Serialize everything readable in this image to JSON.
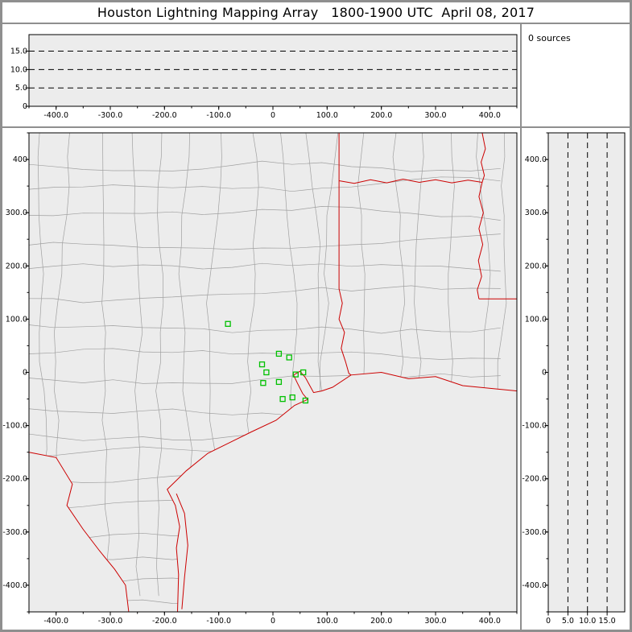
{
  "title": "Houston Lightning Mapping Array   1800-1900 UTC  April 08, 2017",
  "sources_label": "0 sources",
  "colors": {
    "frame_gray": "#8f8f8f",
    "plot_bg": "#ececec",
    "county_line": "#a0a0a0",
    "boundary_red": "#cc0000",
    "station_green": "#00c000",
    "axis_black": "#000000"
  },
  "chart_data": {
    "panels": [
      {
        "id": "altitude-vs-east-west",
        "type": "scatter",
        "title": "altitude (km) vs east-west distance (km)",
        "x_range": [
          -450,
          450
        ],
        "y_range": [
          0,
          19.5
        ],
        "x_ticks": {
          "values": [
            -400,
            -300,
            -200,
            -100,
            0,
            100,
            200,
            300,
            400
          ],
          "labels": [
            "-400.0",
            "-300.0",
            "-200.0",
            "-100.0",
            "0",
            "100.0",
            "200.0",
            "300.0",
            "400.0"
          ]
        },
        "y_ticks": {
          "values": [
            15,
            10,
            5,
            0
          ],
          "labels": [
            "15.0",
            "10.0",
            "5.0",
            "0"
          ]
        },
        "dashed_gridlines": [
          5,
          10,
          15
        ],
        "sources": 0,
        "points": []
      },
      {
        "id": "plan-view-map",
        "type": "scatter",
        "title": "plan view: lightning sources over Texas / Louisiana map",
        "x_range": [
          -450,
          450
        ],
        "y_range": [
          -450,
          450
        ],
        "x_ticks": {
          "values": [
            -400,
            -300,
            -200,
            -100,
            0,
            100,
            200,
            300,
            400
          ],
          "labels": [
            "-400.0",
            "-300.0",
            "-200.0",
            "-100.0",
            "0",
            "100.0",
            "200.0",
            "300.0",
            "400.0"
          ]
        },
        "y_ticks": {
          "values": [
            400,
            300,
            200,
            100,
            0,
            -100,
            -200,
            -300,
            -400
          ],
          "labels": [
            "400",
            "300.0",
            "200.0",
            "100.0",
            "0",
            "-100.0",
            "-200.0",
            "-300.0",
            "-400.0"
          ]
        },
        "sources": 0,
        "points": [],
        "stations": [
          [
            -83,
            91
          ],
          [
            11,
            35
          ],
          [
            30,
            28
          ],
          [
            -20,
            15
          ],
          [
            -12,
            0
          ],
          [
            -18,
            -20
          ],
          [
            11,
            -18
          ],
          [
            42,
            -4
          ],
          [
            56,
            0
          ],
          [
            18,
            -50
          ],
          [
            36,
            -47
          ],
          [
            60,
            -53
          ]
        ],
        "land_outline": [
          [
            -450,
            450
          ],
          [
            450,
            450
          ],
          [
            450,
            -35
          ],
          [
            350,
            -25
          ],
          [
            300,
            -8
          ],
          [
            250,
            -12
          ],
          [
            200,
            0
          ],
          [
            144,
            -5
          ],
          [
            110,
            -28
          ],
          [
            90,
            -35
          ],
          [
            75,
            -38
          ],
          [
            68,
            -25
          ],
          [
            60,
            -10
          ],
          [
            50,
            2
          ],
          [
            38,
            -5
          ],
          [
            45,
            -20
          ],
          [
            55,
            -40
          ],
          [
            64,
            -51
          ],
          [
            40,
            -62
          ],
          [
            6,
            -90
          ],
          [
            -40,
            -112
          ],
          [
            -80,
            -132
          ],
          [
            -120,
            -152
          ],
          [
            -160,
            -185
          ],
          [
            -195,
            -220
          ],
          [
            -180,
            -250
          ],
          [
            -172,
            -290
          ],
          [
            -178,
            -330
          ],
          [
            -174,
            -380
          ],
          [
            -176,
            -450
          ],
          [
            -266,
            -450
          ],
          [
            -272,
            -400
          ],
          [
            -292,
            -370
          ],
          [
            -320,
            -335
          ],
          [
            -350,
            -295
          ],
          [
            -380,
            -250
          ],
          [
            -370,
            -210
          ],
          [
            -400,
            -160
          ],
          [
            -450,
            -150
          ]
        ],
        "boundaries": {
          "rio_grande": [
            [
              -450,
              -150
            ],
            [
              -400,
              -160
            ],
            [
              -370,
              -210
            ],
            [
              -380,
              -250
            ],
            [
              -350,
              -295
            ],
            [
              -320,
              -335
            ],
            [
              -292,
              -370
            ],
            [
              -272,
              -400
            ],
            [
              -266,
              -450
            ]
          ],
          "coastline": [
            [
              -176,
              -450
            ],
            [
              -174,
              -380
            ],
            [
              -178,
              -330
            ],
            [
              -172,
              -290
            ],
            [
              -180,
              -250
            ],
            [
              -195,
              -220
            ],
            [
              -160,
              -185
            ],
            [
              -120,
              -152
            ],
            [
              -80,
              -132
            ],
            [
              -40,
              -112
            ],
            [
              6,
              -90
            ],
            [
              40,
              -62
            ],
            [
              64,
              -51
            ],
            [
              55,
              -40
            ],
            [
              45,
              -20
            ],
            [
              38,
              -5
            ],
            [
              50,
              2
            ],
            [
              60,
              -10
            ],
            [
              68,
              -25
            ],
            [
              75,
              -38
            ],
            [
              90,
              -35
            ],
            [
              110,
              -28
            ],
            [
              144,
              -5
            ],
            [
              200,
              0
            ],
            [
              250,
              -12
            ],
            [
              300,
              -8
            ],
            [
              350,
              -25
            ],
            [
              450,
              -35
            ]
          ],
          "barrier_island": [
            [
              -168,
              -445
            ],
            [
              -163,
              -385
            ],
            [
              -157,
              -325
            ],
            [
              -163,
              -265
            ],
            [
              -178,
              -228
            ]
          ],
          "tx_ar_border": [
            [
              122,
              450
            ],
            [
              122,
              360
            ]
          ],
          "red_river": [
            [
              122,
              360
            ],
            [
              150,
              355
            ],
            [
              180,
              362
            ],
            [
              210,
              356
            ],
            [
              240,
              363
            ],
            [
              270,
              357
            ],
            [
              300,
              362
            ],
            [
              330,
              356
            ],
            [
              360,
              361
            ],
            [
              386,
              357
            ]
          ],
          "mississippi_river": [
            [
              386,
              450
            ],
            [
              392,
              420
            ],
            [
              384,
              395
            ],
            [
              390,
              370
            ],
            [
              386,
              357
            ],
            [
              380,
              330
            ],
            [
              388,
              300
            ],
            [
              380,
              270
            ],
            [
              387,
              240
            ],
            [
              379,
              210
            ],
            [
              385,
              180
            ],
            [
              377,
              155
            ],
            [
              380,
              138
            ]
          ],
          "la_ms_border": [
            [
              380,
              138
            ],
            [
              450,
              138
            ]
          ],
          "tx_la_border": [
            [
              122,
              360
            ],
            [
              122,
              250
            ],
            [
              122,
              157
            ],
            [
              128,
              130
            ],
            [
              122,
              100
            ],
            [
              132,
              75
            ],
            [
              126,
              45
            ],
            [
              134,
              20
            ],
            [
              140,
              -2
            ],
            [
              144,
              -5
            ]
          ]
        }
      },
      {
        "id": "altitude-vs-north-south",
        "type": "scatter",
        "title": "altitude (km) vs north-south distance (km)",
        "x_range": [
          0,
          19.5
        ],
        "y_range": [
          -450,
          450
        ],
        "x_ticks": {
          "values": [
            0,
            5,
            10,
            15
          ],
          "labels": [
            "0",
            "5.0",
            "10.0",
            "15.0"
          ]
        },
        "y_ticks": {
          "values": [
            400,
            300,
            200,
            100,
            0,
            -100,
            -200,
            -300,
            -400
          ],
          "labels": [
            "400.0",
            "300.0",
            "200.0",
            "100.0",
            "0",
            "-100.0",
            "-200.0",
            "-300.0",
            "-400.0"
          ]
        },
        "dashed_gridlines": [
          5,
          10,
          15
        ],
        "sources": 0,
        "points": []
      }
    ]
  }
}
